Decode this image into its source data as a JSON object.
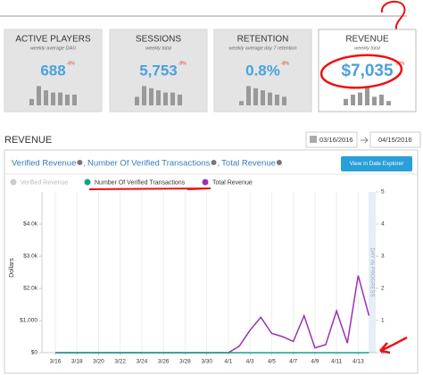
{
  "cards": [
    {
      "title": "ACTIVE PLAYERS",
      "subtitle": "weekly average DAU",
      "value": "688",
      "change": "-6%",
      "bars": [
        3,
        9,
        7,
        6,
        6,
        5,
        5
      ]
    },
    {
      "title": "SESSIONS",
      "subtitle": "weekly total",
      "value": "5,753",
      "change": "-9%",
      "bars": [
        4,
        9,
        8,
        7,
        6,
        6,
        5
      ]
    },
    {
      "title": "RETENTION",
      "subtitle": "weekly average day 7 retention",
      "value": "0.8%",
      "change": "-8%",
      "bars": [
        2,
        9,
        8,
        7,
        6,
        5,
        4
      ]
    },
    {
      "title": "REVENUE",
      "subtitle": "weekly total",
      "value": "$7,035",
      "change": "-33%",
      "bars": [
        3,
        5,
        6,
        9,
        4,
        5,
        2
      ]
    }
  ],
  "section_title": "REVENUE",
  "date_from": "03/16/2016",
  "date_to": "04/15/2016",
  "panel": {
    "header": [
      "Verified Revenue",
      "Number Of Verified Transactions",
      "Total Revenue"
    ],
    "separator": ",",
    "button": "View in Date Explorer"
  },
  "chart_data": {
    "type": "line",
    "categories": [
      "3/16",
      null,
      "3/18",
      null,
      "3/20",
      null,
      "3/22",
      null,
      "3/24",
      null,
      "3/26",
      null,
      "3/28",
      null,
      "3/30",
      null,
      "4/1",
      null,
      "4/3",
      null,
      "4/5",
      null,
      "4/7",
      null,
      "4/9",
      null,
      "4/11",
      null,
      "4/13",
      null
    ],
    "series": [
      {
        "name": "Verified Revenue",
        "color": "#cccccc",
        "visible": false,
        "values": [
          null,
          null,
          null,
          null,
          null,
          null,
          null,
          null,
          null,
          null,
          null,
          null,
          null,
          null,
          null,
          null,
          null,
          null,
          null,
          null,
          null,
          null,
          null,
          null,
          null,
          null,
          null,
          null,
          null,
          null
        ]
      },
      {
        "name": "Number Of Verified Transactions",
        "color": "#16a085",
        "visible": true,
        "axis": "y2",
        "values": [
          0,
          0,
          0,
          0,
          0,
          0,
          0,
          0,
          0,
          0,
          0,
          0,
          0,
          0,
          0,
          0,
          0,
          0,
          0,
          0,
          0,
          0,
          0,
          0,
          0,
          0,
          0,
          0,
          0,
          0
        ]
      },
      {
        "name": "Total Revenue",
        "color": "#9b30b5",
        "visible": true,
        "values": [
          0,
          0,
          0,
          0,
          0,
          0,
          0,
          0,
          0,
          0,
          0,
          0,
          0,
          0,
          0,
          0,
          0,
          200,
          700,
          1100,
          600,
          500,
          350,
          1150,
          150,
          250,
          1300,
          300,
          2400,
          1150
        ]
      }
    ],
    "ylabel": "Dollars",
    "ylim": [
      0,
      5000
    ],
    "yticks": [
      {
        "value": 0,
        "label": "$0"
      },
      {
        "value": 1000,
        "label": "$1,000"
      },
      {
        "value": 2000,
        "label": "$2.0k"
      },
      {
        "value": 3000,
        "label": "$3.0k"
      },
      {
        "value": 4000,
        "label": "$4.0k"
      }
    ],
    "y2lim": [
      0,
      5
    ],
    "y2ticks": [
      0,
      1,
      2,
      3,
      4,
      5
    ],
    "annotation": "DAY IN PROGRESS",
    "grid": true
  }
}
